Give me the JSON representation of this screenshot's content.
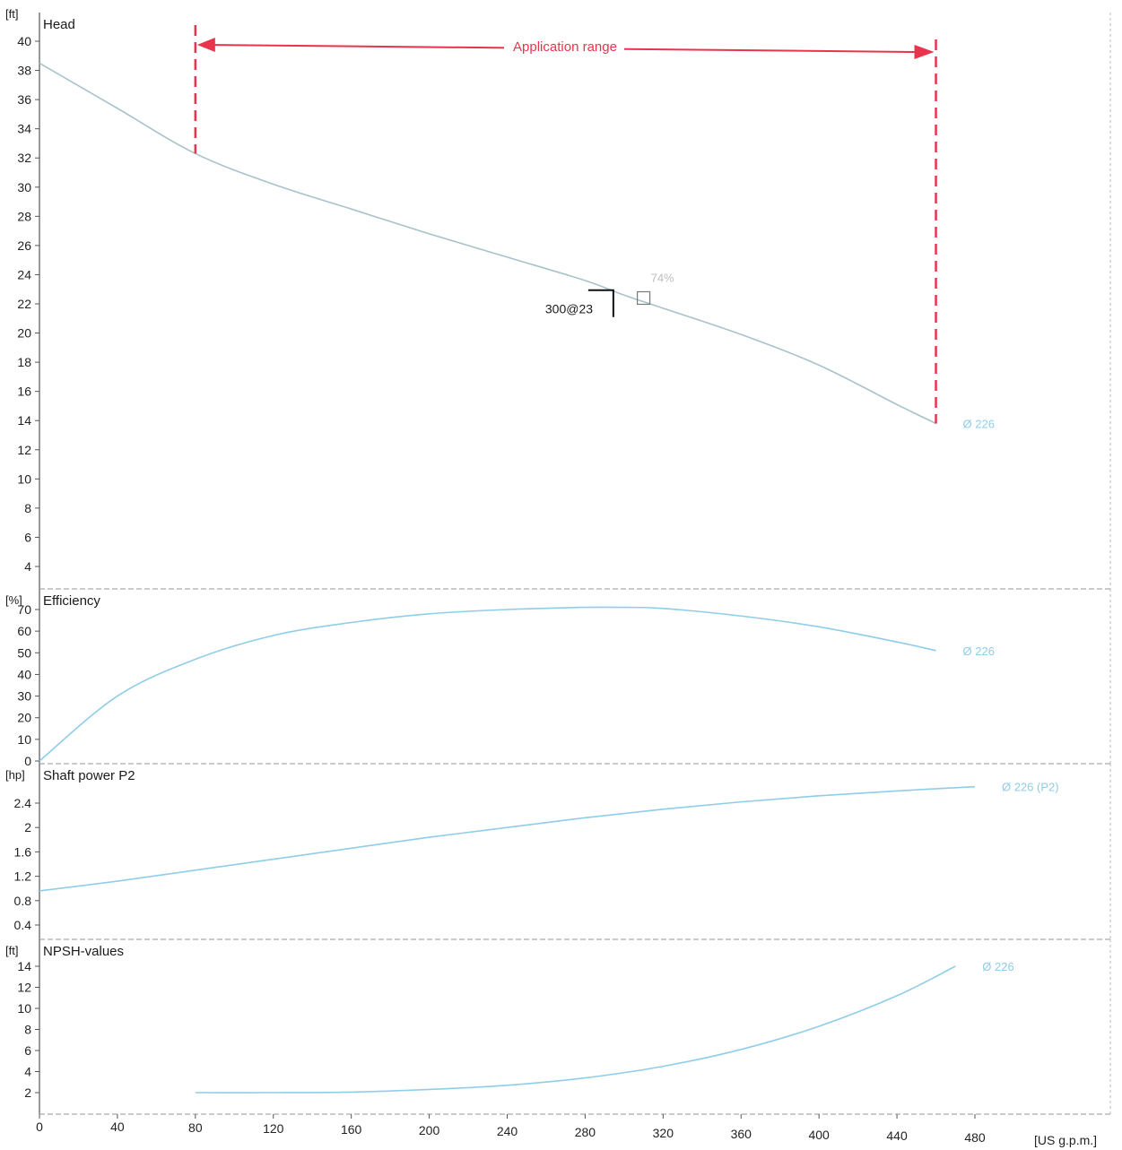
{
  "colors": {
    "curve": "#8fcde8",
    "head_curve": "#a8c2cc",
    "range": "#e8344d",
    "frame": "#555555",
    "grid": "#b9b9b9",
    "text": "#1a1a1a"
  },
  "x_axis": {
    "unit": "[US g.p.m.]",
    "ticks": [
      "0",
      "40",
      "80",
      "120",
      "160",
      "200",
      "240",
      "280",
      "320",
      "360",
      "400",
      "440",
      "480"
    ],
    "range": [
      0,
      480
    ]
  },
  "chart_data": [
    {
      "type": "line",
      "title": "Head",
      "ylabel": "[ft]",
      "ylim": [
        4,
        41
      ],
      "yticks": [
        "4",
        "6",
        "8",
        "10",
        "12",
        "14",
        "16",
        "18",
        "20",
        "22",
        "24",
        "26",
        "28",
        "30",
        "32",
        "34",
        "36",
        "38",
        "40"
      ],
      "series": [
        {
          "name": "Ø 226",
          "x": [
            0,
            40,
            80,
            120,
            160,
            200,
            240,
            280,
            300,
            320,
            360,
            400,
            440,
            460
          ],
          "y": [
            38.5,
            35.4,
            32.3,
            30.2,
            28.5,
            26.8,
            25.2,
            23.6,
            22.6,
            21.7,
            19.9,
            17.8,
            15.1,
            13.8
          ]
        }
      ],
      "annotations": {
        "application_range": {
          "label": "Application range",
          "x_from": 80,
          "x_to": 460
        },
        "duty_point": {
          "label": "300@23",
          "x": 300,
          "y": 23
        },
        "duty_point_small": {
          "label": "74%",
          "x": 310,
          "y": 22.4
        }
      }
    },
    {
      "type": "line",
      "title": "Efficiency",
      "ylabel": "[%]",
      "ylim": [
        0,
        73
      ],
      "yticks": [
        "0",
        "10",
        "20",
        "30",
        "40",
        "50",
        "60",
        "70"
      ],
      "series": [
        {
          "name": "Ø 226",
          "x": [
            0,
            40,
            80,
            120,
            160,
            200,
            240,
            280,
            300,
            320,
            360,
            400,
            440,
            460
          ],
          "y": [
            0,
            30,
            47,
            58,
            64,
            68,
            70,
            71,
            71,
            70.5,
            67,
            62,
            55,
            51
          ]
        }
      ]
    },
    {
      "type": "line",
      "title": "Shaft power P2",
      "ylabel": "[hp]",
      "ylim": [
        0.4,
        2.6
      ],
      "yticks": [
        "0.4",
        "0.8",
        "1.2",
        "1.6",
        "2",
        "2.4"
      ],
      "series": [
        {
          "name": "Ø 226 (P2)",
          "x": [
            0,
            40,
            80,
            120,
            160,
            200,
            240,
            280,
            320,
            360,
            400,
            440,
            480
          ],
          "y": [
            0.96,
            1.12,
            1.3,
            1.48,
            1.66,
            1.84,
            2.0,
            2.16,
            2.3,
            2.42,
            2.52,
            2.6,
            2.67
          ]
        }
      ]
    },
    {
      "type": "line",
      "title": "NPSH-values",
      "ylabel": "[ft]",
      "ylim": [
        0.5,
        15
      ],
      "yticks": [
        "2",
        "4",
        "6",
        "8",
        "10",
        "12",
        "14"
      ],
      "series": [
        {
          "name": "Ø 226",
          "x": [
            80,
            120,
            160,
            200,
            240,
            280,
            320,
            360,
            400,
            440,
            470
          ],
          "y": [
            2.0,
            2.0,
            2.05,
            2.3,
            2.7,
            3.4,
            4.5,
            6.1,
            8.3,
            11.2,
            14.0
          ]
        }
      ]
    }
  ]
}
